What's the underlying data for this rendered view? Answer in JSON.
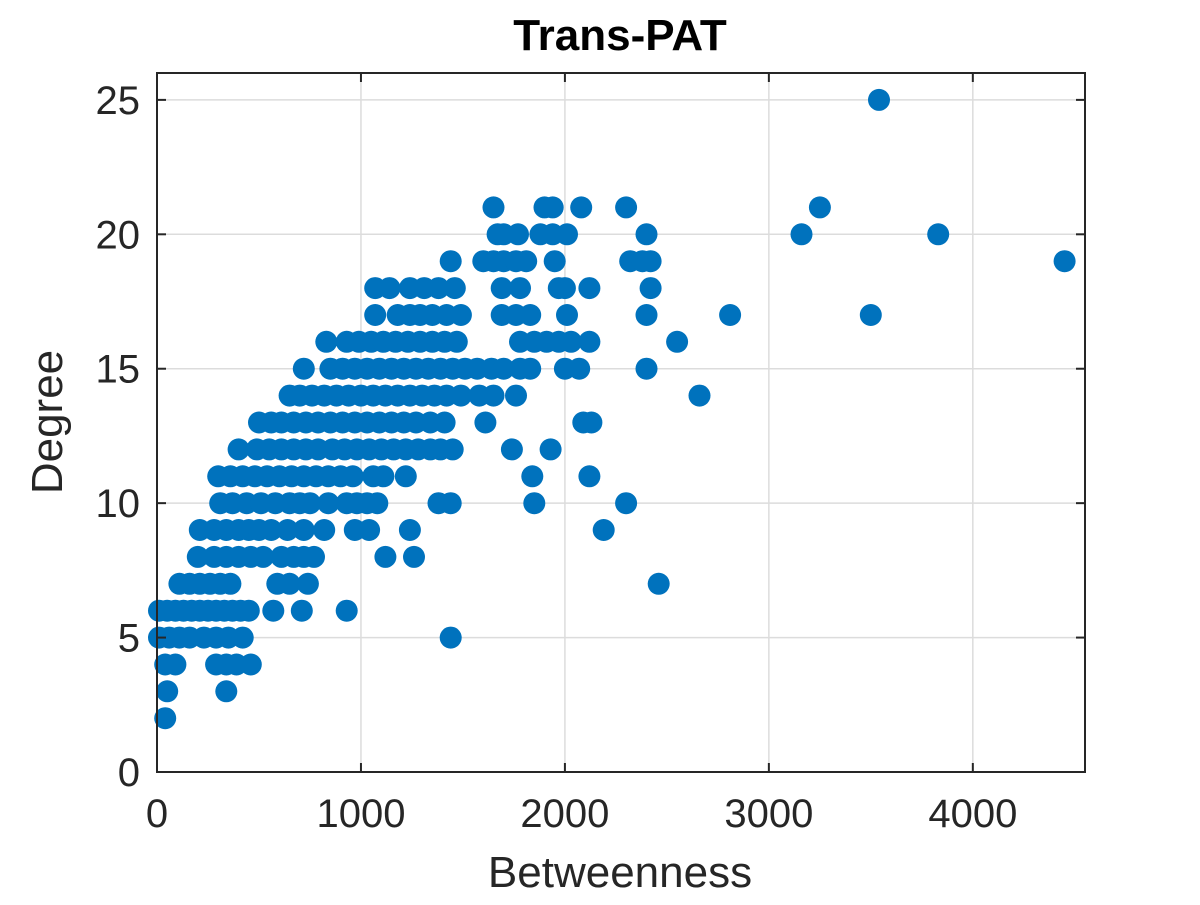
{
  "chart_data": {
    "type": "scatter",
    "title": "Trans-PAT",
    "xlabel": "Betweenness",
    "ylabel": "Degree",
    "xlim": [
      0,
      4550
    ],
    "ylim": [
      0,
      26
    ],
    "xticks": [
      0,
      1000,
      2000,
      3000,
      4000
    ],
    "yticks": [
      0,
      5,
      10,
      15,
      20,
      25
    ],
    "grid": true,
    "marker_color": "#0072BD",
    "series": [
      {
        "points": [
          [
            40,
            2
          ],
          [
            50,
            3
          ],
          [
            340,
            3
          ],
          [
            40,
            4
          ],
          [
            90,
            4
          ],
          [
            290,
            4
          ],
          [
            340,
            4
          ],
          [
            390,
            4
          ],
          [
            460,
            4
          ],
          [
            10,
            5
          ],
          [
            60,
            5
          ],
          [
            110,
            5
          ],
          [
            160,
            5
          ],
          [
            230,
            5
          ],
          [
            290,
            5
          ],
          [
            350,
            5
          ],
          [
            420,
            5
          ],
          [
            1440,
            5
          ],
          [
            10,
            6
          ],
          [
            50,
            6
          ],
          [
            90,
            6
          ],
          [
            130,
            6
          ],
          [
            170,
            6
          ],
          [
            210,
            6
          ],
          [
            250,
            6
          ],
          [
            290,
            6
          ],
          [
            330,
            6
          ],
          [
            370,
            6
          ],
          [
            410,
            6
          ],
          [
            450,
            6
          ],
          [
            570,
            6
          ],
          [
            710,
            6
          ],
          [
            930,
            6
          ],
          [
            110,
            7
          ],
          [
            160,
            7
          ],
          [
            210,
            7
          ],
          [
            260,
            7
          ],
          [
            310,
            7
          ],
          [
            360,
            7
          ],
          [
            590,
            7
          ],
          [
            650,
            7
          ],
          [
            740,
            7
          ],
          [
            2460,
            7
          ],
          [
            200,
            8
          ],
          [
            280,
            8
          ],
          [
            340,
            8
          ],
          [
            400,
            8
          ],
          [
            460,
            8
          ],
          [
            520,
            8
          ],
          [
            610,
            8
          ],
          [
            670,
            8
          ],
          [
            720,
            8
          ],
          [
            770,
            8
          ],
          [
            1120,
            8
          ],
          [
            1260,
            8
          ],
          [
            210,
            9
          ],
          [
            280,
            9
          ],
          [
            340,
            9
          ],
          [
            400,
            9
          ],
          [
            450,
            9
          ],
          [
            500,
            9
          ],
          [
            560,
            9
          ],
          [
            640,
            9
          ],
          [
            720,
            9
          ],
          [
            820,
            9
          ],
          [
            970,
            9
          ],
          [
            1040,
            9
          ],
          [
            1240,
            9
          ],
          [
            2190,
            9
          ],
          [
            310,
            10
          ],
          [
            370,
            10
          ],
          [
            440,
            10
          ],
          [
            510,
            10
          ],
          [
            580,
            10
          ],
          [
            650,
            10
          ],
          [
            700,
            10
          ],
          [
            750,
            10
          ],
          [
            840,
            10
          ],
          [
            930,
            10
          ],
          [
            980,
            10
          ],
          [
            1030,
            10
          ],
          [
            1080,
            10
          ],
          [
            1380,
            10
          ],
          [
            1440,
            10
          ],
          [
            1850,
            10
          ],
          [
            2300,
            10
          ],
          [
            300,
            11
          ],
          [
            360,
            11
          ],
          [
            420,
            11
          ],
          [
            480,
            11
          ],
          [
            540,
            11
          ],
          [
            600,
            11
          ],
          [
            660,
            11
          ],
          [
            720,
            11
          ],
          [
            780,
            11
          ],
          [
            840,
            11
          ],
          [
            900,
            11
          ],
          [
            960,
            11
          ],
          [
            1060,
            11
          ],
          [
            1110,
            11
          ],
          [
            1220,
            11
          ],
          [
            1840,
            11
          ],
          [
            2120,
            11
          ],
          [
            400,
            12
          ],
          [
            490,
            12
          ],
          [
            550,
            12
          ],
          [
            610,
            12
          ],
          [
            670,
            12
          ],
          [
            730,
            12
          ],
          [
            790,
            12
          ],
          [
            860,
            12
          ],
          [
            920,
            12
          ],
          [
            980,
            12
          ],
          [
            1040,
            12
          ],
          [
            1100,
            12
          ],
          [
            1160,
            12
          ],
          [
            1220,
            12
          ],
          [
            1280,
            12
          ],
          [
            1340,
            12
          ],
          [
            1390,
            12
          ],
          [
            1450,
            12
          ],
          [
            1740,
            12
          ],
          [
            1930,
            12
          ],
          [
            500,
            13
          ],
          [
            560,
            13
          ],
          [
            610,
            13
          ],
          [
            670,
            13
          ],
          [
            730,
            13
          ],
          [
            790,
            13
          ],
          [
            850,
            13
          ],
          [
            910,
            13
          ],
          [
            970,
            13
          ],
          [
            1030,
            13
          ],
          [
            1090,
            13
          ],
          [
            1150,
            13
          ],
          [
            1210,
            13
          ],
          [
            1270,
            13
          ],
          [
            1340,
            13
          ],
          [
            1410,
            13
          ],
          [
            1610,
            13
          ],
          [
            2090,
            13
          ],
          [
            2130,
            13
          ],
          [
            650,
            14
          ],
          [
            700,
            14
          ],
          [
            760,
            14
          ],
          [
            820,
            14
          ],
          [
            880,
            14
          ],
          [
            940,
            14
          ],
          [
            1000,
            14
          ],
          [
            1060,
            14
          ],
          [
            1120,
            14
          ],
          [
            1180,
            14
          ],
          [
            1240,
            14
          ],
          [
            1300,
            14
          ],
          [
            1360,
            14
          ],
          [
            1420,
            14
          ],
          [
            1490,
            14
          ],
          [
            1580,
            14
          ],
          [
            1650,
            14
          ],
          [
            1760,
            14
          ],
          [
            2660,
            14
          ],
          [
            720,
            15
          ],
          [
            850,
            15
          ],
          [
            910,
            15
          ],
          [
            970,
            15
          ],
          [
            1030,
            15
          ],
          [
            1090,
            15
          ],
          [
            1150,
            15
          ],
          [
            1210,
            15
          ],
          [
            1270,
            15
          ],
          [
            1330,
            15
          ],
          [
            1390,
            15
          ],
          [
            1450,
            15
          ],
          [
            1510,
            15
          ],
          [
            1570,
            15
          ],
          [
            1640,
            15
          ],
          [
            1700,
            15
          ],
          [
            1780,
            15
          ],
          [
            1830,
            15
          ],
          [
            2000,
            15
          ],
          [
            2070,
            15
          ],
          [
            2400,
            15
          ],
          [
            830,
            16
          ],
          [
            930,
            16
          ],
          [
            990,
            16
          ],
          [
            1050,
            16
          ],
          [
            1110,
            16
          ],
          [
            1170,
            16
          ],
          [
            1230,
            16
          ],
          [
            1290,
            16
          ],
          [
            1350,
            16
          ],
          [
            1410,
            16
          ],
          [
            1470,
            16
          ],
          [
            1780,
            16
          ],
          [
            1850,
            16
          ],
          [
            1910,
            16
          ],
          [
            1970,
            16
          ],
          [
            2030,
            16
          ],
          [
            2120,
            16
          ],
          [
            2550,
            16
          ],
          [
            1070,
            17
          ],
          [
            1180,
            17
          ],
          [
            1240,
            17
          ],
          [
            1290,
            17
          ],
          [
            1350,
            17
          ],
          [
            1420,
            17
          ],
          [
            1490,
            17
          ],
          [
            1690,
            17
          ],
          [
            1760,
            17
          ],
          [
            1830,
            17
          ],
          [
            2010,
            17
          ],
          [
            2400,
            17
          ],
          [
            2810,
            17
          ],
          [
            3500,
            17
          ],
          [
            1070,
            18
          ],
          [
            1140,
            18
          ],
          [
            1240,
            18
          ],
          [
            1310,
            18
          ],
          [
            1380,
            18
          ],
          [
            1460,
            18
          ],
          [
            1690,
            18
          ],
          [
            1780,
            18
          ],
          [
            1970,
            18
          ],
          [
            2000,
            18
          ],
          [
            2120,
            18
          ],
          [
            2420,
            18
          ],
          [
            1440,
            19
          ],
          [
            1600,
            19
          ],
          [
            1650,
            19
          ],
          [
            1700,
            19
          ],
          [
            1760,
            19
          ],
          [
            1810,
            19
          ],
          [
            1950,
            19
          ],
          [
            2320,
            19
          ],
          [
            2380,
            19
          ],
          [
            2420,
            19
          ],
          [
            4450,
            19
          ],
          [
            1670,
            20
          ],
          [
            1700,
            20
          ],
          [
            1770,
            20
          ],
          [
            1880,
            20
          ],
          [
            1940,
            20
          ],
          [
            2010,
            20
          ],
          [
            2400,
            20
          ],
          [
            3160,
            20
          ],
          [
            3830,
            20
          ],
          [
            1650,
            21
          ],
          [
            1900,
            21
          ],
          [
            1940,
            21
          ],
          [
            2080,
            21
          ],
          [
            2300,
            21
          ],
          [
            3250,
            21
          ],
          [
            3540,
            25
          ]
        ]
      }
    ]
  }
}
